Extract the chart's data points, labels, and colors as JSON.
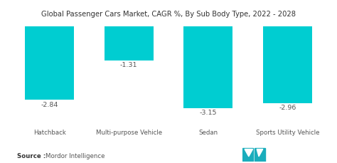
{
  "title": "Global Passenger Cars Market, CAGR %, By Sub Body Type, 2022 - 2028",
  "categories": [
    "Hatchback",
    "Multi-purpose Vehicle",
    "Sedan",
    "Sports Utility Vehicle"
  ],
  "values": [
    -2.84,
    -1.31,
    -3.15,
    -2.96
  ],
  "bar_color": "#00CDD1",
  "background_color": "#ffffff",
  "title_fontsize": 7.2,
  "label_fontsize": 6.2,
  "value_fontsize": 6.8,
  "source_bold": "Source :",
  "source_normal": "Mordor Intelligence",
  "source_fontsize": 6.2,
  "ylim": [
    -3.6,
    0.15
  ],
  "bar_width": 0.62
}
